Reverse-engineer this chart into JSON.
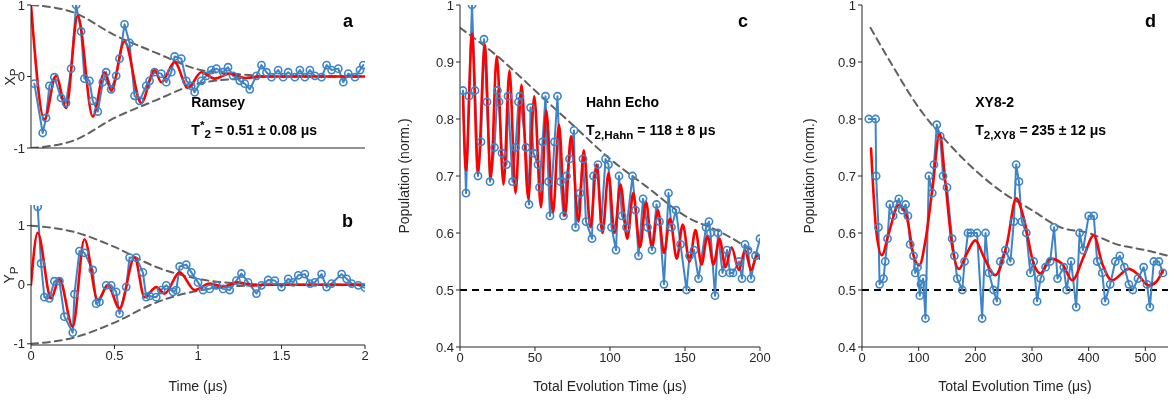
{
  "chart_data": [
    {
      "type": "line",
      "ylabel": "X$_{P}$",
      "xlim": [
        0,
        2
      ],
      "xticks": [
        0,
        0.5,
        1,
        1.5,
        2
      ],
      "ylim": [
        -1,
        1
      ],
      "yticks": [
        -1,
        0,
        1
      ],
      "tick_labels": "y",
      "annotations": [
        "a",
        "Ramsey",
        "T$^{*}$$_{2}$ = 0.51 ± 0.08 μs"
      ],
      "series": [
        {
          "color": "#606060",
          "line_style": "dashed",
          "marker": "none",
          "x": [
            0,
            0.25,
            0.5,
            0.75,
            1,
            1.25,
            1.5,
            2
          ],
          "values": [
            1,
            0.9,
            0.58,
            0.33,
            0.1,
            0.03,
            0,
            0
          ]
        },
        {
          "color": "#606060",
          "line_style": "dashed",
          "marker": "none",
          "x": [
            0,
            0.25,
            0.5,
            0.75,
            1,
            1.25,
            1.5,
            2
          ],
          "values": [
            -1,
            -0.9,
            -0.58,
            -0.33,
            -0.1,
            -0.03,
            0,
            0
          ]
        },
        {
          "color": "#3d85c6",
          "line_style": "solid",
          "marker": "circle",
          "x": [
            0.02,
            0.07,
            0.09,
            0.11,
            0.14,
            0.18,
            0.21,
            0.24,
            0.27,
            0.3,
            0.32,
            0.35,
            0.37,
            0.4,
            0.43,
            0.45,
            0.48,
            0.51,
            0.53,
            0.56,
            0.59,
            0.62,
            0.65,
            0.69,
            0.71,
            0.74,
            0.78,
            0.81,
            0.84,
            0.86,
            0.9,
            0.93,
            0.96,
            0.98,
            1.02,
            1.05,
            1.08,
            1.11,
            1.15,
            1.18,
            1.21,
            1.25,
            1.28,
            1.31,
            1.35,
            1.38,
            1.41,
            1.44,
            1.48,
            1.51,
            1.54,
            1.58,
            1.61,
            1.64,
            1.67,
            1.7,
            1.74,
            1.77,
            1.8,
            1.84,
            1.87,
            1.9,
            1.94,
            1.97,
            1.99
          ],
          "values": [
            -0.1,
            -0.79,
            -0.58,
            -0.13,
            -0.01,
            -0.3,
            -0.37,
            0.11,
            1.0,
            0.63,
            -0.03,
            -0.06,
            -0.34,
            -0.49,
            -0.08,
            0.06,
            -0.18,
            0.01,
            0.25,
            0.73,
            0.47,
            -0.27,
            -0.34,
            -0.13,
            -0.06,
            0.06,
            0.04,
            -0.08,
            0.06,
            0.28,
            0.25,
            -0.06,
            -0.13,
            -0.22,
            -0.06,
            0.01,
            0.09,
            0.11,
            0.06,
            0.13,
            0.01,
            -0.06,
            -0.1,
            -0.18,
            0.01,
            0.16,
            0.06,
            -0.01,
            0.09,
            -0.01,
            0.06,
            -0.01,
            0.09,
            -0.01,
            0.09,
            0.01,
            -0.01,
            0.16,
            0.09,
            0.11,
            -0.08,
            0.04,
            -0.01,
            0.09,
            0.16
          ]
        },
        {
          "color": "#ff0000",
          "line_style": "solid",
          "marker": "none",
          "x": [
            0,
            0.08,
            0.15,
            0.21,
            0.28,
            0.37,
            0.44,
            0.48,
            0.56,
            0.66,
            0.74,
            0.78,
            0.86,
            0.94,
            1.02,
            1.1,
            1.19,
            1.28,
            1.37,
            2
          ],
          "values": [
            1,
            -0.6,
            0.01,
            -0.44,
            0.85,
            -0.56,
            0.06,
            -0.2,
            0.49,
            -0.37,
            0.09,
            -0.08,
            0.2,
            -0.16,
            0.06,
            -0.03,
            0.04,
            -0.02,
            0,
            0
          ]
        }
      ]
    },
    {
      "type": "line",
      "xlabel": "Time (μs)",
      "ylabel": "Y$_{P}$",
      "xlim": [
        0,
        2
      ],
      "xticks": [
        0,
        0.5,
        1,
        1.5,
        2
      ],
      "ylim": [
        -1.02,
        1.35
      ],
      "yticks": [
        -1,
        0,
        1
      ],
      "annotations": [
        "b"
      ],
      "series": [
        {
          "color": "#606060",
          "line_style": "dashed",
          "marker": "none",
          "x": [
            0,
            0.25,
            0.5,
            0.75,
            1,
            1.25,
            1.5,
            2
          ],
          "values": [
            1,
            0.9,
            0.64,
            0.3,
            0.1,
            0.02,
            0,
            0
          ]
        },
        {
          "color": "#606060",
          "line_style": "dashed",
          "marker": "none",
          "x": [
            0,
            0.25,
            0.5,
            0.75,
            1,
            1.25,
            1.5,
            2
          ],
          "values": [
            -1,
            -0.9,
            -0.64,
            -0.3,
            -0.1,
            -0.02,
            0,
            0
          ]
        },
        {
          "color": "#3d85c6",
          "line_style": "solid",
          "marker": "circle",
          "x": [
            0.04,
            0.06,
            0.08,
            0.11,
            0.14,
            0.17,
            0.2,
            0.25,
            0.26,
            0.29,
            0.32,
            0.37,
            0.39,
            0.41,
            0.45,
            0.48,
            0.51,
            0.53,
            0.57,
            0.59,
            0.63,
            0.67,
            0.69,
            0.71,
            0.75,
            0.78,
            0.81,
            0.85,
            0.87,
            0.89,
            0.93,
            0.96,
            1.0,
            1.03,
            1.07,
            1.11,
            1.15,
            1.19,
            1.23,
            1.26,
            1.3,
            1.35,
            1.38,
            1.42,
            1.46,
            1.5,
            1.54,
            1.57,
            1.6,
            1.64,
            1.67,
            1.7,
            1.74,
            1.77,
            1.8,
            1.86,
            1.89,
            1.92,
            1.96,
            2.0
          ],
          "values": [
            1.32,
            0.36,
            -0.21,
            -0.23,
            0.06,
            0.06,
            -0.54,
            -0.81,
            -0.16,
            0.57,
            0.54,
            0.25,
            -0.32,
            -0.29,
            -0.01,
            -0.01,
            -0.12,
            -0.49,
            -0.04,
            0.46,
            0.46,
            0.21,
            -0.21,
            -0.19,
            -0.21,
            -0.09,
            -0.01,
            -0.12,
            -0.09,
            0.31,
            0.34,
            0.21,
            0.04,
            -0.09,
            -0.07,
            -0.01,
            -0.07,
            -0.09,
            0.07,
            0.19,
            0.04,
            -0.15,
            -0.01,
            0.08,
            0.07,
            -0.04,
            0.1,
            0.04,
            0.16,
            0.18,
            0.02,
            0.04,
            0.18,
            -0.04,
            0.02,
            0.18,
            0.1,
            0.02,
            -0.01,
            -0.05
          ]
        },
        {
          "color": "#ff0000",
          "line_style": "solid",
          "marker": "none",
          "x": [
            0,
            0.04,
            0.12,
            0.17,
            0.25,
            0.32,
            0.4,
            0.46,
            0.53,
            0.62,
            0.68,
            0.75,
            0.8,
            0.89,
            0.98,
            1.07,
            1.15,
            1.24,
            1.33,
            1.42,
            2
          ],
          "values": [
            0,
            0.88,
            -0.23,
            0.1,
            -0.71,
            0.77,
            -0.26,
            -0.01,
            -0.4,
            0.46,
            -0.21,
            -0.04,
            -0.15,
            0.21,
            -0.09,
            0.02,
            -0.03,
            0.04,
            -0.01,
            0,
            0
          ]
        }
      ]
    },
    {
      "type": "line",
      "xlabel": "Total Evolution Time (μs)",
      "ylabel": "Population (norm.)",
      "xlim": [
        0,
        200
      ],
      "xticks": [
        0,
        50,
        100,
        150,
        200
      ],
      "ylim": [
        0.4,
        1
      ],
      "yticks": [
        0.4,
        0.5,
        0.6,
        0.7,
        0.8,
        0.9,
        1
      ],
      "annotations": [
        "c",
        "Hahn Echo",
        "T$_{2,Hahn}$ = 118 ± 8 μs"
      ],
      "ref_lines": [
        {
          "axis": "y",
          "value": 0.5,
          "color": "#000000",
          "line_style": "dashed"
        }
      ],
      "series": [
        {
          "color": "#606060",
          "line_style": "dashed",
          "marker": "none",
          "x": [
            0,
            25,
            50,
            75,
            100,
            125,
            150,
            175,
            200
          ],
          "values": [
            0.96,
            0.91,
            0.85,
            0.79,
            0.73,
            0.68,
            0.63,
            0.6,
            0.56
          ]
        },
        {
          "color": "#3d85c6",
          "line_style": "solid",
          "marker": "circle",
          "x": [
            2,
            4,
            6,
            8,
            10,
            12,
            14,
            16,
            18,
            20,
            23,
            25,
            26,
            28,
            31,
            32,
            35,
            37,
            39,
            40,
            44,
            46,
            47,
            49,
            52,
            53,
            55,
            57,
            59,
            60,
            63,
            65,
            67,
            69,
            71,
            73,
            76,
            77,
            80,
            82,
            84,
            88,
            89,
            92,
            94,
            97,
            99,
            101,
            104,
            106,
            108,
            111,
            115,
            117,
            119,
            122,
            125,
            128,
            131,
            133,
            136,
            139,
            141,
            144,
            147,
            151,
            153,
            156,
            159,
            164,
            166,
            167,
            170,
            172,
            175,
            178,
            180,
            182,
            186,
            188,
            190,
            192,
            194,
            197,
            200
          ],
          "values": [
            0.85,
            0.67,
            0.84,
            1.0,
            0.85,
            0.7,
            0.76,
            0.94,
            0.83,
            0.69,
            0.75,
            0.85,
            0.83,
            0.74,
            0.72,
            0.84,
            0.69,
            0.75,
            0.83,
            0.84,
            0.75,
            0.65,
            0.82,
            0.74,
            0.72,
            0.68,
            0.76,
            0.84,
            0.69,
            0.63,
            0.76,
            0.84,
            0.69,
            0.63,
            0.7,
            0.73,
            0.78,
            0.61,
            0.67,
            0.73,
            0.62,
            0.59,
            0.7,
            0.72,
            0.61,
            0.73,
            0.72,
            0.61,
            0.57,
            0.7,
            0.63,
            0.61,
            0.7,
            0.64,
            0.56,
            0.66,
            0.61,
            0.57,
            0.65,
            0.62,
            0.51,
            0.67,
            0.61,
            0.64,
            0.58,
            0.5,
            0.56,
            0.57,
            0.52,
            0.61,
            0.62,
            0.6,
            0.49,
            0.6,
            0.53,
            0.57,
            0.53,
            0.53,
            0.55,
            0.52,
            0.58,
            0.57,
            0.52,
            0.56,
            0.59
          ]
        },
        {
          "color": "#ff0000",
          "line_style": "solid",
          "marker": "none",
          "x": [
            2,
            4,
            8,
            12,
            16.5,
            20.5,
            24.5,
            29,
            33,
            37,
            41,
            45.5,
            49.5,
            54,
            57.5,
            62,
            66,
            70,
            74,
            79,
            82.5,
            87,
            91,
            95,
            99,
            103,
            107,
            111.5,
            115.5,
            120,
            124,
            128,
            132,
            136,
            140,
            144.5,
            148.5,
            153,
            157,
            161,
            165,
            169,
            173,
            177,
            181,
            186,
            190,
            194,
            198,
            200
          ],
          "values": [
            0.84,
            0.71,
            0.95,
            0.705,
            0.93,
            0.695,
            0.91,
            0.685,
            0.885,
            0.67,
            0.86,
            0.66,
            0.84,
            0.645,
            0.815,
            0.635,
            0.79,
            0.63,
            0.77,
            0.62,
            0.745,
            0.61,
            0.72,
            0.6,
            0.705,
            0.6,
            0.685,
            0.59,
            0.67,
            0.575,
            0.655,
            0.575,
            0.64,
            0.565,
            0.625,
            0.555,
            0.615,
            0.55,
            0.605,
            0.545,
            0.595,
            0.545,
            0.59,
            0.54,
            0.575,
            0.535,
            0.57,
            0.535,
            0.56,
            0.555
          ]
        }
      ]
    },
    {
      "type": "line",
      "xlabel": "Total Evolution Time (μs)",
      "ylabel": "Population (norm.)",
      "xlim": [
        0,
        540
      ],
      "xticks": [
        0,
        100,
        200,
        300,
        400,
        500
      ],
      "ylim": [
        0.4,
        1
      ],
      "yticks": [
        0.4,
        0.5,
        0.6,
        0.7,
        0.8,
        0.9,
        1
      ],
      "annotations": [
        "d",
        "XY8-2",
        "T$_{2,XY8}$ = 235 ± 12 μs"
      ],
      "ref_lines": [
        {
          "axis": "y",
          "value": 0.5,
          "color": "#000000",
          "line_style": "dashed"
        }
      ],
      "series": [
        {
          "color": "#606060",
          "line_style": "dashed",
          "marker": "none",
          "x": [
            15,
            50,
            100,
            150,
            200,
            250,
            300,
            350,
            400,
            450,
            500,
            540
          ],
          "values": [
            0.96,
            0.9,
            0.82,
            0.76,
            0.71,
            0.67,
            0.64,
            0.61,
            0.6,
            0.58,
            0.57,
            0.56
          ]
        },
        {
          "color": "#3d85c6",
          "line_style": "solid",
          "marker": "circle",
          "x": [
            12,
            24,
            25,
            29,
            31,
            38,
            41,
            45,
            49,
            55,
            61,
            65,
            71,
            77,
            81,
            85,
            91,
            94,
            98,
            102,
            104,
            108,
            112,
            118,
            124,
            127,
            132,
            138,
            143,
            150,
            159,
            163,
            168,
            177,
            181,
            187,
            192,
            203,
            212,
            218,
            224,
            232,
            238,
            244,
            253,
            262,
            268,
            272,
            277,
            282,
            290,
            297,
            303,
            309,
            315,
            324,
            332,
            339,
            345,
            356,
            361,
            369,
            378,
            384,
            390,
            400,
            409,
            415,
            424,
            429,
            438,
            447,
            455,
            463,
            471,
            478,
            487,
            497,
            503,
            508,
            515,
            524,
            531
          ],
          "values": [
            0.8,
            0.8,
            0.7,
            0.61,
            0.51,
            0.52,
            0.55,
            0.59,
            0.65,
            0.63,
            0.65,
            0.66,
            0.64,
            0.65,
            0.63,
            0.58,
            0.56,
            0.53,
            0.54,
            0.49,
            0.51,
            0.52,
            0.45,
            0.7,
            0.67,
            0.72,
            0.79,
            0.77,
            0.7,
            0.68,
            0.59,
            0.56,
            0.52,
            0.5,
            0.55,
            0.6,
            0.6,
            0.6,
            0.45,
            0.6,
            0.53,
            0.5,
            0.48,
            0.55,
            0.57,
            0.55,
            0.62,
            0.72,
            0.69,
            0.62,
            0.6,
            0.53,
            0.55,
            0.48,
            0.52,
            0.54,
            0.55,
            0.61,
            0.52,
            0.54,
            0.5,
            0.55,
            0.47,
            0.6,
            0.57,
            0.63,
            0.63,
            0.55,
            0.53,
            0.48,
            0.51,
            0.55,
            0.56,
            0.54,
            0.51,
            0.5,
            0.52,
            0.54,
            0.51,
            0.47,
            0.55,
            0.55,
            0.53
          ]
        },
        {
          "color": "#ff0000",
          "line_style": "solid",
          "marker": "none",
          "x": [
            16,
            25,
            35,
            47,
            65,
            79,
            91,
            101,
            112,
            125,
            137,
            147,
            159,
            171,
            185,
            200,
            215,
            235,
            256,
            272,
            285,
            303,
            315,
            332,
            353,
            371,
            391,
            409,
            424,
            441,
            471,
            485,
            506,
            519,
            531
          ],
          "values": [
            0.748,
            0.605,
            0.561,
            0.599,
            0.649,
            0.628,
            0.561,
            0.543,
            0.587,
            0.684,
            0.775,
            0.69,
            0.578,
            0.537,
            0.564,
            0.587,
            0.558,
            0.526,
            0.582,
            0.661,
            0.628,
            0.546,
            0.529,
            0.555,
            0.546,
            0.517,
            0.558,
            0.596,
            0.546,
            0.517,
            0.537,
            0.529,
            0.508,
            0.514,
            0.534
          ]
        }
      ]
    }
  ]
}
